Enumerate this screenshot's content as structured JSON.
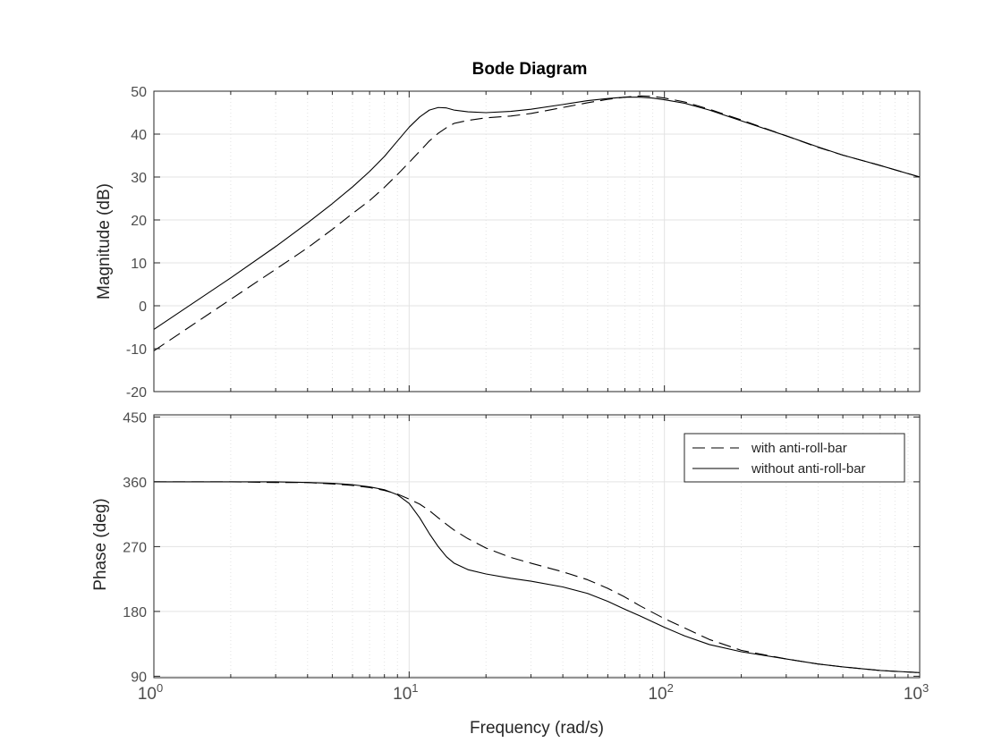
{
  "chart_data": {
    "type": "line",
    "title": "Bode Diagram",
    "xlabel": "Frequency  (rad/s)",
    "xscale": "log",
    "xlim": [
      1,
      1000
    ],
    "x_ticks": [
      {
        "value": 1,
        "base": "10",
        "exp": "0"
      },
      {
        "value": 10,
        "base": "10",
        "exp": "1"
      },
      {
        "value": 100,
        "base": "10",
        "exp": "2"
      },
      {
        "value": 1000,
        "base": "10",
        "exp": "3"
      }
    ],
    "grid": true,
    "legend": {
      "placement": "top-right of phase plot",
      "entries": [
        {
          "label": "with anti-roll-bar",
          "style": "dashed"
        },
        {
          "label": "without anti-roll-bar",
          "style": "solid"
        }
      ]
    },
    "colors": {
      "line": "#000000",
      "grid": "#e3e3e3",
      "axis": "#262626"
    },
    "subplots": [
      {
        "name": "magnitude",
        "ylabel": "Magnitude (dB)",
        "ylim": [
          -20,
          50
        ],
        "yticks": [
          "50",
          "40",
          "30",
          "20",
          "10",
          "0",
          "-10",
          "-20"
        ],
        "series": [
          {
            "name": "with anti-roll-bar",
            "style": "dashed",
            "x": [
              1,
              2,
              3,
              4,
              5,
              6,
              7,
              8,
              9,
              10,
              11,
              12,
              13,
              14,
              15,
              17,
              20,
              25,
              30,
              40,
              50,
              60,
              70,
              80,
              90,
              100,
              120,
              150,
              200,
              300,
              400,
              500,
              700,
              1000
            ],
            "y": [
              -10.5,
              1.5,
              8.5,
              13.5,
              17.8,
              21.5,
              24.5,
              27.6,
              30.6,
              33.4,
              36.0,
              38.4,
              40.2,
              41.5,
              42.5,
              43.2,
              43.8,
              44.2,
              44.8,
              46.2,
              47.3,
              48.1,
              48.6,
              48.9,
              48.8,
              48.4,
              47.5,
              45.8,
              43.3,
              39.6,
              36.9,
              35.1,
              32.7,
              30.0
            ]
          },
          {
            "name": "without anti-roll-bar",
            "style": "solid",
            "x": [
              1,
              2,
              3,
              4,
              5,
              6,
              7,
              8,
              9,
              10,
              11,
              12,
              13,
              14,
              15,
              17,
              20,
              25,
              30,
              40,
              50,
              60,
              70,
              80,
              90,
              100,
              120,
              150,
              200,
              300,
              400,
              500,
              700,
              1000
            ],
            "y": [
              -5.5,
              6.5,
              13.8,
              19.3,
              23.8,
              27.7,
              31.3,
              34.8,
              38.4,
              41.6,
              44.0,
              45.6,
              46.2,
              46.1,
              45.6,
              45.2,
              45.0,
              45.3,
              45.8,
              46.9,
              47.8,
              48.3,
              48.6,
              48.6,
              48.4,
              48.0,
              47.2,
              45.6,
              43.1,
              39.6,
              37.0,
              35.1,
              32.7,
              30.0
            ]
          }
        ]
      },
      {
        "name": "phase",
        "ylabel": "Phase (deg)",
        "ylim": [
          88,
          453
        ],
        "yticks": [
          "450",
          "360",
          "270",
          "180",
          "90"
        ],
        "series": [
          {
            "name": "with anti-roll-bar",
            "style": "dashed",
            "x": [
              1,
              2,
              3,
              4,
              5,
              6,
              7,
              8,
              9,
              10,
              11,
              12,
              13,
              14,
              15,
              17,
              20,
              25,
              30,
              40,
              50,
              60,
              70,
              80,
              100,
              120,
              150,
              200,
              300,
              400,
              500,
              700,
              1000
            ],
            "y": [
              360,
              360,
              359,
              359,
              357,
              355,
              352,
              348,
              343,
              336,
              329,
              320,
              310,
              301,
              293,
              281,
              268,
              255,
              247,
              235,
              224,
              212,
              200,
              188,
              170,
              157,
              141,
              126,
              114,
              107,
              103,
              98,
              95
            ]
          },
          {
            "name": "without anti-roll-bar",
            "style": "solid",
            "x": [
              1,
              2,
              3,
              4,
              5,
              6,
              7,
              8,
              9,
              10,
              11,
              12,
              13,
              14,
              15,
              17,
              20,
              25,
              30,
              40,
              50,
              60,
              70,
              80,
              100,
              120,
              150,
              200,
              300,
              400,
              500,
              700,
              1000
            ],
            "y": [
              360,
              360,
              360,
              359,
              358,
              356,
              353,
              349,
              342,
              330,
              310,
              288,
              270,
              256,
              247,
              238,
              232,
              226,
              222,
              214,
              205,
              194,
              183,
              174,
              158,
              146,
              134,
              124,
              114,
              107,
              103,
              98,
              95
            ]
          }
        ]
      }
    ]
  }
}
